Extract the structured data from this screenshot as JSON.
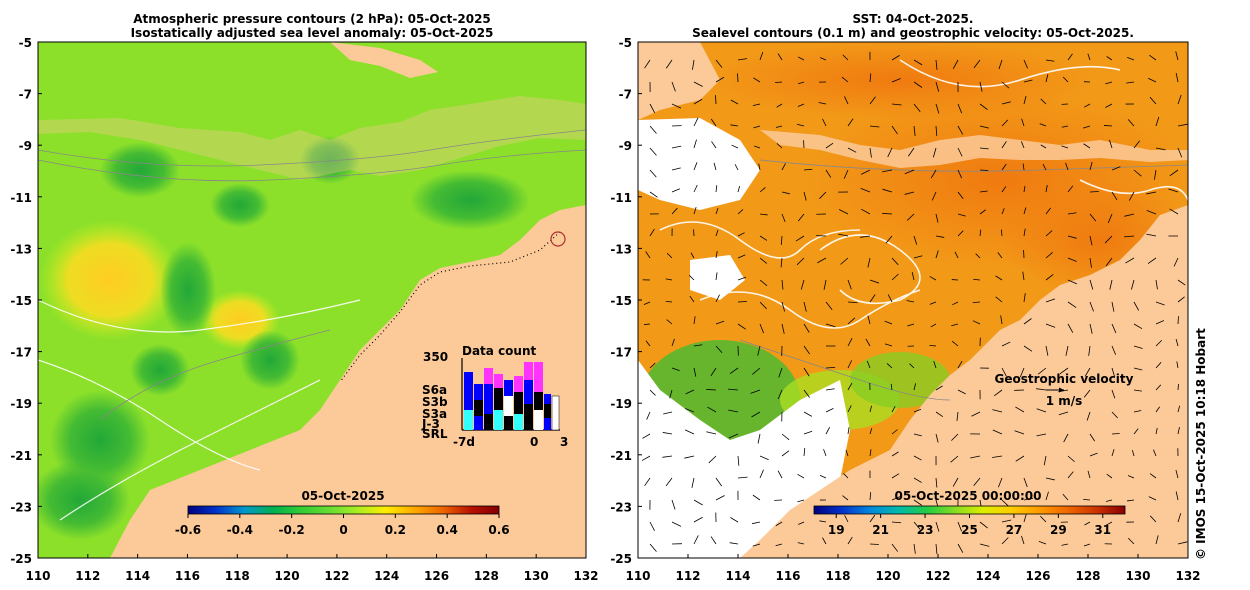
{
  "left_panel": {
    "title_line1": "Atmospheric pressure contours (2 hPa): 05-Oct-2025",
    "title_line2": "Isostatically adjusted sea level anomaly: 05-Oct-2025",
    "colorbar_title": "05-Oct-2025",
    "colorbar_ticks": [
      "-0.6",
      "-0.4",
      "-0.2",
      "0",
      "0.2",
      "0.4",
      "0.6"
    ],
    "colorbar_range": [
      -0.6,
      0.6
    ],
    "colorbar_colors": [
      "#00007f",
      "#0033cc",
      "#0099cc",
      "#00b050",
      "#33cc33",
      "#66dd33",
      "#aaee22",
      "#ffee00",
      "#ffaa00",
      "#ee6600",
      "#bb1100",
      "#800000"
    ],
    "inset": {
      "title": "Data count",
      "y_max_label": "350",
      "x_labels": [
        "-7d",
        "0",
        "3"
      ],
      "missions": [
        {
          "name": "S6a",
          "color": "#ff33ff"
        },
        {
          "name": "S3b",
          "color": "#0000ff"
        },
        {
          "name": "S3a",
          "color": "#ffffff"
        },
        {
          "name": "J-3",
          "color": "#000000"
        },
        {
          "name": "SRL",
          "color": "#33ffff"
        }
      ]
    }
  },
  "right_panel": {
    "title_line1": "SST: 04-Oct-2025.",
    "title_line2": "Sealevel contours (0.1 m) and geostrophic velocity: 05-Oct-2025.",
    "colorbar_title": "05-Oct-2025 00:00:00",
    "colorbar_ticks": [
      "19",
      "21",
      "23",
      "25",
      "27",
      "29",
      "31"
    ],
    "colorbar_range": [
      18,
      32
    ],
    "colorbar_colors": [
      "#000080",
      "#0033cc",
      "#0088dd",
      "#00bbaa",
      "#22cc44",
      "#88dd22",
      "#ddee00",
      "#ffcc00",
      "#ff9900",
      "#ee6600",
      "#cc3300",
      "#880000"
    ],
    "velocity_legend_title": "Geostrophic velocity",
    "velocity_legend_scale": "1 m/s"
  },
  "axes": {
    "lon_labels": [
      "110",
      "112",
      "114",
      "116",
      "118",
      "120",
      "122",
      "124",
      "126",
      "128",
      "130",
      "132"
    ],
    "lat_labels": [
      "-5",
      "-7",
      "-9",
      "-11",
      "-13",
      "-15",
      "-17",
      "-19",
      "-21",
      "-23",
      "-25"
    ],
    "lon_range": [
      110,
      132
    ],
    "lat_range": [
      -25,
      -5
    ]
  },
  "credit": "© IMOS 15-Oct-2025 10:18 Hobart",
  "colors": {
    "land": "#fcc998",
    "sla_background": "#8ce02a",
    "sst_background": "#f29a18",
    "no_data": "#ffffff"
  }
}
